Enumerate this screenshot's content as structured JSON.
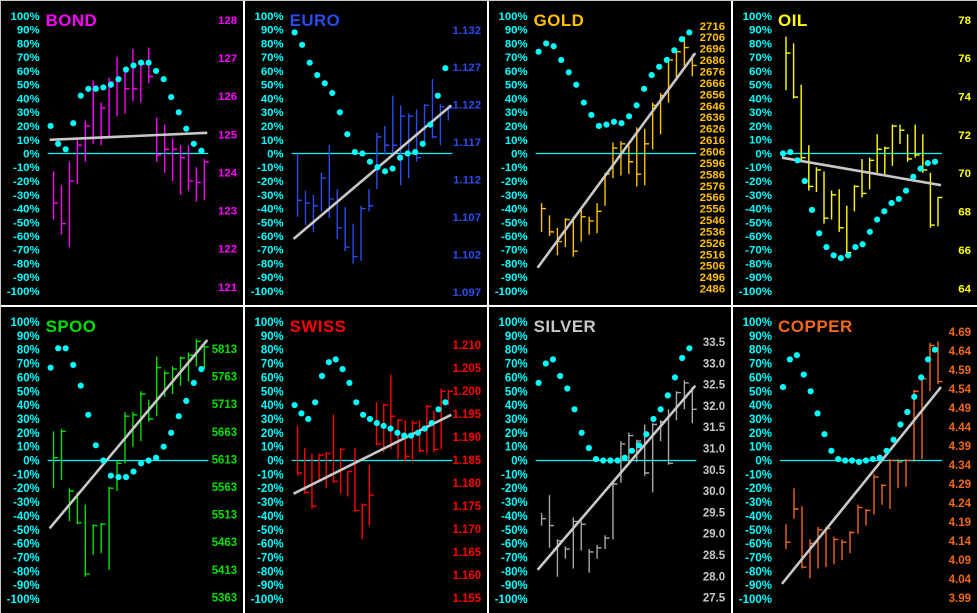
{
  "window": {
    "background": "#000000",
    "outer_border_color": "#C8C8C8",
    "divider_color": "#FFFFFF"
  },
  "percent_axis": {
    "color": "#00FFFF",
    "labels": [
      "100%",
      "90%",
      "80%",
      "70%",
      "60%",
      "50%",
      "40%",
      "30%",
      "20%",
      "10%",
      "0%",
      "-10%",
      "-20%",
      "-30%",
      "-40%",
      "-50%",
      "-60%",
      "-70%",
      "-80%",
      "-90%",
      "-100%"
    ]
  },
  "indicator": {
    "dot_color": "#00FFFF",
    "trend_color": "#C8C8C8",
    "zero_line_color": "#00FFFF"
  },
  "chart_data": [
    {
      "type": "ohlc-bars with cycle dots and regression trend line",
      "title": "BOND",
      "color": "#FF00FF",
      "percent_axis_range": [
        -100,
        100
      ],
      "price_labels": [
        "128",
        "127",
        "126",
        "125",
        "124",
        "123",
        "122",
        "121"
      ],
      "price_label_top": 19,
      "price_label_spacing": 38.4,
      "trend_pct": [
        10,
        15
      ],
      "cycle_pct": [
        20,
        7,
        3,
        22,
        42,
        47,
        47,
        48,
        50,
        54,
        61,
        64,
        66,
        66,
        60,
        54,
        41,
        30,
        18,
        7,
        2
      ],
      "bars_pct_hlc": [
        [
          -13,
          -48,
          -36
        ],
        [
          -23,
          -59,
          -51
        ],
        [
          -6,
          -68,
          -20
        ],
        [
          11,
          -22,
          6
        ],
        [
          24,
          -6,
          20
        ],
        [
          53,
          7,
          49
        ],
        [
          37,
          6,
          33
        ],
        [
          55,
          12,
          52
        ],
        [
          70,
          27,
          55
        ],
        [
          62,
          29,
          47
        ],
        [
          76,
          38,
          47
        ],
        [
          67,
          37,
          65
        ],
        [
          77,
          51,
          56
        ],
        [
          26,
          -6,
          -1
        ],
        [
          21,
          -14,
          3
        ],
        [
          11,
          -20,
          3
        ],
        [
          6,
          -30,
          -3
        ],
        [
          6,
          -27,
          -20
        ],
        [
          -10,
          -35,
          -21
        ],
        [
          -4,
          -34,
          -6
        ]
      ]
    },
    {
      "type": "ohlc-bars with cycle dots and regression trend line",
      "title": "EURO",
      "color": "#2B4BEF",
      "percent_axis_range": [
        -100,
        100
      ],
      "price_labels": [
        "1.132",
        "1.127",
        "1.122",
        "1.117",
        "1.112",
        "1.107",
        "1.102",
        "1.097"
      ],
      "price_label_top": 29,
      "price_label_spacing": 37.7,
      "trend_pct": [
        -62,
        35
      ],
      "cycle_pct": [
        88,
        79,
        66,
        57,
        51,
        44,
        30,
        14,
        1,
        0,
        -6,
        -10,
        -13,
        -11,
        -3,
        0,
        1,
        7,
        21,
        42,
        62
      ],
      "bars_pct_hlc": [
        [
          0,
          -46,
          -34
        ],
        [
          -27,
          -52,
          -36
        ],
        [
          -30,
          -57,
          -38
        ],
        [
          -14,
          -42,
          -18
        ],
        [
          6,
          -47,
          -33
        ],
        [
          -26,
          -62,
          -54
        ],
        [
          -39,
          -71,
          -68
        ],
        [
          -51,
          -80,
          -75
        ],
        [
          -38,
          -78,
          -40
        ],
        [
          -26,
          -42,
          -38
        ],
        [
          15,
          -26,
          12
        ],
        [
          20,
          -1,
          6
        ],
        [
          42,
          0,
          6
        ],
        [
          35,
          -23,
          27
        ],
        [
          29,
          -18,
          27
        ],
        [
          32,
          -6,
          -3
        ],
        [
          36,
          8,
          35
        ],
        [
          54,
          11,
          12
        ],
        [
          36,
          6,
          34
        ],
        [
          35,
          24,
          33
        ]
      ]
    },
    {
      "type": "ohlc-bars with cycle dots and regression trend line",
      "title": "GOLD",
      "color": "#FFC000",
      "percent_axis_range": [
        -100,
        100
      ],
      "price_labels": [
        "2716",
        "2706",
        "2696",
        "2686",
        "2676",
        "2666",
        "2656",
        "2646",
        "2636",
        "2626",
        "2616",
        "2606",
        "2596",
        "2586",
        "2576",
        "2566",
        "2556",
        "2546",
        "2536",
        "2526",
        "2516",
        "2506",
        "2496",
        "2486"
      ],
      "price_label_top": 25,
      "price_label_spacing": 11.5,
      "trend_pct": [
        -83,
        73
      ],
      "cycle_pct": [
        74,
        80,
        78,
        68,
        59,
        50,
        37,
        28,
        20,
        21,
        23,
        22,
        27,
        35,
        47,
        57,
        63,
        68,
        75,
        83,
        88
      ],
      "bars_pct_hlc": [
        [
          -36,
          -57,
          -40
        ],
        [
          -45,
          -60,
          -57
        ],
        [
          -54,
          -74,
          -64
        ],
        [
          -47,
          -68,
          -48
        ],
        [
          -46,
          -75,
          -71
        ],
        [
          -39,
          -64,
          -46
        ],
        [
          -46,
          -59,
          -49
        ],
        [
          -36,
          -58,
          -42
        ],
        [
          -14,
          -38,
          -15
        ],
        [
          8,
          -18,
          4
        ],
        [
          9,
          -16,
          7
        ],
        [
          6,
          -15,
          -6
        ],
        [
          19,
          -24,
          -15
        ],
        [
          18,
          -23,
          7
        ],
        [
          37,
          3,
          35
        ],
        [
          44,
          14,
          42
        ],
        [
          70,
          37,
          68
        ],
        [
          76,
          53,
          74
        ],
        [
          85,
          62,
          77
        ],
        [
          72,
          56,
          64
        ]
      ]
    },
    {
      "type": "ohlc-bars with cycle dots and regression trend line",
      "title": "OIL",
      "color": "#FFFF00",
      "percent_axis_range": [
        -100,
        100
      ],
      "price_labels": [
        "78",
        "76",
        "74",
        "72",
        "70",
        "68",
        "66",
        "64"
      ],
      "price_label_top": 19,
      "price_label_spacing": 38.6,
      "trend_pct": [
        -3,
        -23
      ],
      "cycle_pct": [
        0,
        1,
        -5,
        -20,
        -41,
        -58,
        -68,
        -74,
        -76,
        -74,
        -68,
        -66,
        -57,
        -48,
        -42,
        -36,
        -33,
        -27,
        -17,
        -11,
        -7,
        -6
      ],
      "bars_pct_hlc": [
        [
          85,
          46,
          73
        ],
        [
          80,
          40,
          41
        ],
        [
          50,
          -6,
          -3
        ],
        [
          6,
          -27,
          -24
        ],
        [
          -10,
          -28,
          -12
        ],
        [
          -13,
          -51,
          -47
        ],
        [
          -27,
          -48,
          -30
        ],
        [
          -26,
          -57,
          -54
        ],
        [
          -38,
          -75,
          -72
        ],
        [
          -23,
          -42,
          -24
        ],
        [
          -4,
          -32,
          -29
        ],
        [
          -3,
          -26,
          -5
        ],
        [
          14,
          -14,
          3
        ],
        [
          5,
          -15,
          4
        ],
        [
          21,
          -9,
          20
        ],
        [
          21,
          7,
          17
        ],
        [
          14,
          -6,
          -4
        ],
        [
          21,
          -3,
          -1
        ],
        [
          14,
          -14,
          -12
        ],
        [
          -14,
          -54,
          -52
        ],
        [
          -32,
          -53,
          -32
        ]
      ]
    },
    {
      "type": "ohlc-bars with cycle dots and regression trend line",
      "title": "SPOO",
      "color": "#00E000",
      "percent_axis_range": [
        -100,
        100
      ],
      "price_labels": [
        "5813",
        "5763",
        "5713",
        "5663",
        "5613",
        "5563",
        "5513",
        "5463",
        "5413",
        "5363"
      ],
      "price_label_top": 42,
      "price_label_spacing": 27.6,
      "trend_pct": [
        -49,
        87
      ],
      "cycle_pct": [
        67,
        81,
        81,
        69,
        54,
        33,
        11,
        0,
        -11,
        -12,
        -12,
        -8,
        -2,
        0,
        2,
        10,
        20,
        32,
        43,
        56,
        66
      ],
      "bars_pct_hlc": [
        [
          21,
          -20,
          2
        ],
        [
          23,
          -14,
          21
        ],
        [
          -20,
          -44,
          -22
        ],
        [
          -23,
          -46,
          -45
        ],
        [
          -32,
          -84,
          -82
        ],
        [
          -46,
          -68,
          -47
        ],
        [
          -45,
          -67,
          -46
        ],
        [
          -19,
          -79,
          -20
        ],
        [
          0,
          -22,
          -2
        ],
        [
          35,
          -2,
          32
        ],
        [
          35,
          10,
          33
        ],
        [
          50,
          14,
          48
        ],
        [
          44,
          28,
          30
        ],
        [
          75,
          32,
          67
        ],
        [
          65,
          46,
          63
        ],
        [
          68,
          48,
          66
        ],
        [
          75,
          54,
          74
        ],
        [
          78,
          57,
          76
        ],
        [
          88,
          68,
          86
        ],
        [
          83,
          66,
          82
        ]
      ]
    },
    {
      "type": "ohlc-bars with cycle dots and regression trend line",
      "title": "SWISS",
      "color": "#FF0000",
      "percent_axis_range": [
        -100,
        100
      ],
      "price_labels": [
        "1.210",
        "1.205",
        "1.200",
        "1.195",
        "1.190",
        "1.185",
        "1.180",
        "1.175",
        "1.170",
        "1.165",
        "1.160",
        "1.155"
      ],
      "price_label_top": 38,
      "price_label_spacing": 23.0,
      "trend_pct": [
        -24,
        33
      ],
      "cycle_pct": [
        40,
        34,
        30,
        42,
        61,
        71,
        73,
        66,
        56,
        42,
        33,
        30,
        27,
        25,
        23,
        20,
        18,
        18,
        20,
        23,
        27,
        37,
        42
      ],
      "bars_pct_hlc": [
        [
          25,
          -11,
          -9
        ],
        [
          9,
          -24,
          -23
        ],
        [
          5,
          -35,
          -33
        ],
        [
          5,
          -15,
          4
        ],
        [
          6,
          -20,
          5
        ],
        [
          33,
          -16,
          -15
        ],
        [
          9,
          -24,
          8
        ],
        [
          -8,
          -26,
          -8
        ],
        [
          9,
          -37,
          -36
        ],
        [
          -31,
          -57,
          -32
        ],
        [
          -3,
          -47,
          -25
        ],
        [
          42,
          11,
          12
        ],
        [
          41,
          6,
          40
        ],
        [
          62,
          8,
          32
        ],
        [
          30,
          1,
          29
        ],
        [
          29,
          -1,
          3
        ],
        [
          29,
          -1,
          27
        ],
        [
          29,
          6,
          7
        ],
        [
          40,
          5,
          39
        ],
        [
          36,
          6,
          8
        ],
        [
          52,
          8,
          50
        ],
        [
          51,
          40,
          50
        ]
      ]
    },
    {
      "type": "ohlc-bars with cycle dots and regression trend line",
      "title": "SILVER",
      "color": "#C8C8C8",
      "bar_color": "#A9A9A9",
      "percent_axis_range": [
        -100,
        100
      ],
      "price_labels": [
        "33.5",
        "33.0",
        "32.5",
        "32.0",
        "31.5",
        "31.0",
        "30.5",
        "30.0",
        "29.5",
        "29.0",
        "28.5",
        "28.0",
        "27.5"
      ],
      "price_label_top": 35,
      "price_label_spacing": 21.3,
      "trend_pct": [
        -79,
        54
      ],
      "cycle_pct": [
        56,
        70,
        73,
        61,
        52,
        37,
        20,
        9,
        1,
        0,
        0,
        0,
        2,
        7,
        11,
        19,
        30,
        37,
        47,
        60,
        74,
        81
      ],
      "bars_pct_hlc": [
        [
          -38,
          -47,
          -42
        ],
        [
          -25,
          -63,
          -47
        ],
        [
          -57,
          -84,
          -58
        ],
        [
          -62,
          -71,
          -64
        ],
        [
          -41,
          -78,
          -44
        ],
        [
          -44,
          -65,
          -46
        ],
        [
          -64,
          -81,
          -66
        ],
        [
          -61,
          -71,
          -63
        ],
        [
          -54,
          -64,
          -56
        ],
        [
          -15,
          -57,
          -17
        ],
        [
          14,
          -16,
          12
        ],
        [
          20,
          -3,
          18
        ],
        [
          15,
          -1,
          14
        ],
        [
          26,
          -11,
          -9
        ],
        [
          27,
          -23,
          26
        ],
        [
          29,
          14,
          28
        ],
        [
          37,
          -3,
          -2
        ],
        [
          50,
          29,
          49
        ],
        [
          58,
          37,
          56
        ],
        [
          53,
          27,
          37
        ]
      ]
    },
    {
      "type": "ohlc-bars with cycle dots and regression trend line",
      "title": "COPPER",
      "color": "#F06818",
      "percent_axis_range": [
        -100,
        100
      ],
      "price_labels": [
        "4.69",
        "4.64",
        "4.59",
        "4.54",
        "4.49",
        "4.44",
        "4.39",
        "4.34",
        "4.29",
        "4.24",
        "4.19",
        "4.14",
        "4.09",
        "4.04",
        "3.99"
      ],
      "price_label_top": 25,
      "price_label_spacing": 19.0,
      "trend_pct": [
        -89,
        53
      ],
      "cycle_pct": [
        53,
        73,
        76,
        62,
        50,
        34,
        19,
        7,
        1,
        0,
        0,
        -1,
        0,
        1,
        2,
        7,
        15,
        26,
        35,
        46,
        60,
        73,
        80
      ],
      "bars_pct_hlc": [
        [
          -46,
          -64,
          -59
        ],
        [
          -20,
          -42,
          -35
        ],
        [
          -33,
          -78,
          -77
        ],
        [
          -57,
          -85,
          -60
        ],
        [
          -48,
          -78,
          -50
        ],
        [
          -48,
          -77,
          -49
        ],
        [
          -55,
          -75,
          -57
        ],
        [
          -57,
          -72,
          -59
        ],
        [
          -51,
          -67,
          -52
        ],
        [
          -32,
          -53,
          -34
        ],
        [
          -35,
          -47,
          -36
        ],
        [
          -10,
          -39,
          -12
        ],
        [
          -17,
          -32,
          -18
        ],
        [
          1,
          -35,
          0
        ],
        [
          1,
          -20,
          -1
        ],
        [
          1,
          -19,
          0
        ],
        [
          51,
          -1,
          50
        ],
        [
          61,
          1,
          59
        ],
        [
          85,
          50,
          83
        ],
        [
          86,
          55,
          57
        ]
      ]
    }
  ]
}
